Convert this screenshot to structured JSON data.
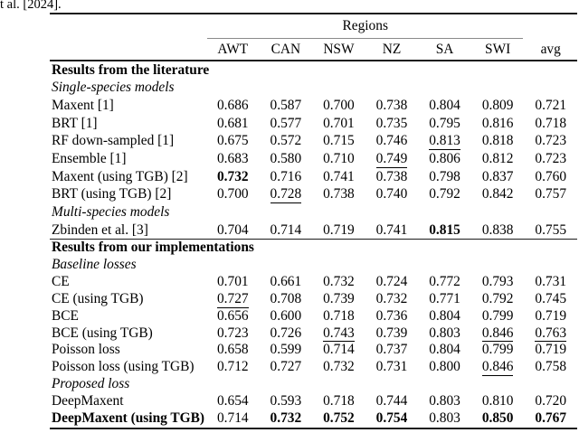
{
  "caption_fragment": "t al. [2024].",
  "colors": {
    "background": "#ffffff",
    "text": "#000000",
    "rule_heavy": "#1b1b1b",
    "cmidrule": "#8a8a8a"
  },
  "table": {
    "group_header": "Regions",
    "columns": [
      "AWT",
      "CAN",
      "NSW",
      "NZ",
      "SA",
      "SWI",
      "avg"
    ],
    "sections": [
      {
        "rows": [
          {
            "type": "section",
            "label": "Results from the literature"
          },
          {
            "type": "subsection",
            "label": "Single-species models"
          },
          {
            "type": "data",
            "label": "Maxent [1]",
            "values": [
              "0.686",
              "0.587",
              "0.700",
              "0.738",
              "0.804",
              "0.809",
              "0.721"
            ],
            "marks": [
              "",
              "",
              "",
              "",
              "",
              "",
              ""
            ]
          },
          {
            "type": "data",
            "label": "BRT [1]",
            "values": [
              "0.681",
              "0.577",
              "0.701",
              "0.735",
              "0.795",
              "0.816",
              "0.718"
            ],
            "marks": [
              "",
              "",
              "",
              "",
              "",
              "",
              ""
            ]
          },
          {
            "type": "data",
            "label": "RF down-sampled [1]",
            "values": [
              "0.675",
              "0.572",
              "0.715",
              "0.746",
              "0.813",
              "0.818",
              "0.723"
            ],
            "marks": [
              "",
              "",
              "",
              "",
              "u",
              "",
              ""
            ]
          },
          {
            "type": "data",
            "label": "Ensemble [1]",
            "values": [
              "0.683",
              "0.580",
              "0.710",
              "0.749",
              "0.806",
              "0.812",
              "0.723"
            ],
            "marks": [
              "",
              "",
              "",
              "u",
              "",
              "",
              ""
            ]
          },
          {
            "type": "data",
            "label": "Maxent (using TGB) [2]",
            "values": [
              "0.732",
              "0.716",
              "0.741",
              "0.738",
              "0.798",
              "0.837",
              "0.760"
            ],
            "marks": [
              "b",
              "",
              "",
              "",
              "",
              "",
              ""
            ]
          },
          {
            "type": "data",
            "label": "BRT (using TGB) [2]",
            "values": [
              "0.700",
              "0.728",
              "0.738",
              "0.740",
              "0.792",
              "0.842",
              "0.757"
            ],
            "marks": [
              "",
              "u",
              "",
              "",
              "",
              "",
              ""
            ]
          },
          {
            "type": "subsection",
            "label": "Multi-species models"
          },
          {
            "type": "data",
            "label": "Zbinden et al. [3]",
            "values": [
              "0.704",
              "0.714",
              "0.719",
              "0.741",
              "0.815",
              "0.838",
              "0.755"
            ],
            "marks": [
              "",
              "",
              "",
              "",
              "b",
              "",
              ""
            ]
          }
        ]
      },
      {
        "rows": [
          {
            "type": "section",
            "label": "Results from our implementations"
          },
          {
            "type": "subsection",
            "label": "Baseline losses"
          },
          {
            "type": "data",
            "label": "CE",
            "values": [
              "0.701",
              "0.661",
              "0.732",
              "0.724",
              "0.772",
              "0.793",
              "0.731"
            ],
            "marks": [
              "",
              "",
              "",
              "",
              "",
              "",
              ""
            ]
          },
          {
            "type": "data",
            "label": "CE (using TGB)",
            "values": [
              "0.727",
              "0.708",
              "0.739",
              "0.732",
              "0.771",
              "0.792",
              "0.745"
            ],
            "marks": [
              "u",
              "",
              "",
              "",
              "",
              "",
              ""
            ]
          },
          {
            "type": "data",
            "label": "BCE",
            "values": [
              "0.656",
              "0.600",
              "0.718",
              "0.736",
              "0.804",
              "0.799",
              "0.719"
            ],
            "marks": [
              "",
              "",
              "",
              "",
              "",
              "",
              ""
            ]
          },
          {
            "type": "data",
            "label": "BCE (using TGB)",
            "values": [
              "0.723",
              "0.726",
              "0.743",
              "0.739",
              "0.803",
              "0.846",
              "0.763"
            ],
            "marks": [
              "",
              "",
              "u",
              "",
              "",
              "u",
              "u"
            ]
          },
          {
            "type": "data",
            "label": "Poisson loss",
            "values": [
              "0.658",
              "0.599",
              "0.714",
              "0.737",
              "0.804",
              "0.799",
              "0.719"
            ],
            "marks": [
              "",
              "",
              "",
              "",
              "",
              "",
              ""
            ]
          },
          {
            "type": "data",
            "label": "Poisson loss (using TGB)",
            "values": [
              "0.712",
              "0.727",
              "0.732",
              "0.731",
              "0.800",
              "0.846",
              "0.758"
            ],
            "marks": [
              "",
              "",
              "",
              "",
              "",
              "u",
              ""
            ]
          },
          {
            "type": "subsection",
            "label": "Proposed loss"
          },
          {
            "type": "data",
            "label": "DeepMaxent",
            "values": [
              "0.654",
              "0.593",
              "0.718",
              "0.744",
              "0.803",
              "0.810",
              "0.720"
            ],
            "marks": [
              "",
              "",
              "",
              "",
              "",
              "",
              ""
            ]
          },
          {
            "type": "data",
            "label": "DeepMaxent (using TGB)",
            "label_bold": true,
            "values": [
              "0.714",
              "0.732",
              "0.752",
              "0.754",
              "0.803",
              "0.850",
              "0.767"
            ],
            "marks": [
              "",
              "b",
              "b",
              "b",
              "",
              "b",
              "b"
            ]
          }
        ]
      }
    ]
  }
}
